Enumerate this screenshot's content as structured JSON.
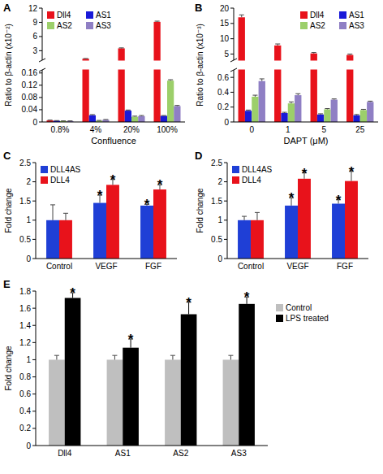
{
  "chart_data": [
    {
      "type": "bar",
      "title": "A",
      "categories": [
        "0.8%",
        "4%",
        "20%",
        "100%"
      ],
      "series": [
        {
          "name": "Dll4",
          "color": "#e8121b",
          "values": [
            0.005,
            1.3,
            3.5,
            9.1
          ],
          "errors": [
            0.001,
            0.05,
            0.1,
            0.15
          ]
        },
        {
          "name": "AS1",
          "color": "#1a1ad8",
          "values": [
            0.004,
            0.022,
            0.037,
            0.02
          ],
          "errors": [
            0.0005,
            0.002,
            0.002,
            0.001
          ]
        },
        {
          "name": "AS2",
          "color": "#9ccf6a",
          "values": [
            0.003,
            0.004,
            0.017,
            0.135
          ],
          "errors": [
            0.0005,
            0.001,
            0.002,
            0.003
          ]
        },
        {
          "name": "AS3",
          "color": "#8f7fc4",
          "values": [
            0.003,
            0.007,
            0.019,
            0.052
          ],
          "errors": [
            0.0005,
            0.001,
            0.002,
            0.002
          ]
        }
      ],
      "ylim": [
        0,
        12
      ],
      "axis_break": [
        0.17,
        1
      ],
      "yticks": [
        0,
        0.04,
        0.08,
        0.12,
        0.16,
        3,
        6,
        9,
        12
      ],
      "xlabel": "Confluence",
      "ylabel": "Ratio to β-actin (x10⁻²)",
      "legend": "upper left"
    },
    {
      "type": "bar",
      "title": "B",
      "categories": [
        "0",
        "1",
        "5",
        "25"
      ],
      "series": [
        {
          "name": "Dll4",
          "color": "#e8121b",
          "values": [
            17,
            7.8,
            5.2,
            4.7
          ],
          "errors": [
            0.8,
            0.5,
            0.3,
            0.3
          ]
        },
        {
          "name": "AS1",
          "color": "#1a1ad8",
          "values": [
            0.15,
            0.12,
            0.1,
            0.09
          ],
          "errors": [
            0.01,
            0.01,
            0.01,
            0.01
          ]
        },
        {
          "name": "AS2",
          "color": "#9ccf6a",
          "values": [
            0.34,
            0.25,
            0.17,
            0.16
          ],
          "errors": [
            0.02,
            0.02,
            0.01,
            0.01
          ]
        },
        {
          "name": "AS3",
          "color": "#8f7fc4",
          "values": [
            0.55,
            0.36,
            0.3,
            0.27
          ],
          "errors": [
            0.03,
            0.02,
            0.01,
            0.01
          ]
        }
      ],
      "ylim": [
        0,
        20
      ],
      "axis_break": [
        0.7,
        3
      ],
      "yticks": [
        0,
        0.2,
        0.4,
        0.6,
        5,
        10,
        15,
        20
      ],
      "xlabel": "DAPT (μM)",
      "ylabel": "Ratio to β-actin (x10⁻³)",
      "legend": "upper right"
    },
    {
      "type": "bar",
      "title": "C",
      "categories": [
        "Control",
        "VEGF",
        "FGF"
      ],
      "series": [
        {
          "name": "DLL4AS",
          "color": "#1f3fd6",
          "values": [
            1,
            1.45,
            1.38
          ],
          "errors": [
            0.4,
            0.2,
            0.03
          ]
        },
        {
          "name": "DLL4",
          "color": "#e8121b",
          "values": [
            1,
            1.92,
            1.8
          ],
          "errors": [
            0.18,
            0.14,
            0.12
          ]
        }
      ],
      "ylim": [
        0,
        2.5
      ],
      "yticks": [
        0,
        0.5,
        1,
        1.5,
        2,
        2.5
      ],
      "ylabel": "Fold change",
      "legend": "upper left",
      "annotations": [
        {
          "text": "*",
          "series": 0,
          "index": 1
        },
        {
          "text": "*",
          "series": 1,
          "index": 1
        },
        {
          "text": "*",
          "series": 0,
          "index": 2
        },
        {
          "text": "*",
          "series": 1,
          "index": 2
        }
      ]
    },
    {
      "type": "bar",
      "title": "D",
      "categories": [
        "Control",
        "VEGF",
        "FGF"
      ],
      "series": [
        {
          "name": "DLL4AS",
          "color": "#1f3fd6",
          "values": [
            1,
            1.38,
            1.43
          ],
          "errors": [
            0.1,
            0.2,
            0.1
          ]
        },
        {
          "name": "DLL4",
          "color": "#e8121b",
          "values": [
            1,
            2.08,
            2.02
          ],
          "errors": [
            0.2,
            0.15,
            0.25
          ]
        }
      ],
      "ylim": [
        0,
        2.5
      ],
      "yticks": [
        0,
        0.5,
        1,
        1.5,
        2,
        2.5
      ],
      "ylabel": "Fold change",
      "legend": "upper left",
      "annotations": [
        {
          "text": "*",
          "series": 0,
          "index": 1
        },
        {
          "text": "*",
          "series": 1,
          "index": 1
        },
        {
          "text": "*",
          "series": 0,
          "index": 2
        },
        {
          "text": "*",
          "series": 1,
          "index": 2
        }
      ]
    },
    {
      "type": "bar",
      "title": "E",
      "categories": [
        "Dll4",
        "AS1",
        "AS2",
        "AS3"
      ],
      "series": [
        {
          "name": "Control",
          "color": "#bfbfbf",
          "values": [
            1,
            1,
            1,
            1
          ],
          "errors": [
            0.05,
            0.05,
            0.05,
            0.05
          ]
        },
        {
          "name": "LPS treated",
          "color": "#000000",
          "values": [
            1.72,
            1.14,
            1.53,
            1.65
          ],
          "errors": [
            0.06,
            0.1,
            0.14,
            0.08
          ]
        }
      ],
      "ylim": [
        0,
        1.8
      ],
      "yticks": [
        0,
        0.2,
        0.4,
        0.6,
        0.8,
        1,
        1.2,
        1.4,
        1.6,
        1.8
      ],
      "ylabel": "Fold change",
      "legend": "right",
      "annotations": [
        {
          "text": "*",
          "series": 1,
          "index": 0
        },
        {
          "text": "*",
          "series": 1,
          "index": 1
        },
        {
          "text": "*",
          "series": 1,
          "index": 2
        },
        {
          "text": "*",
          "series": 1,
          "index": 3
        }
      ]
    }
  ]
}
